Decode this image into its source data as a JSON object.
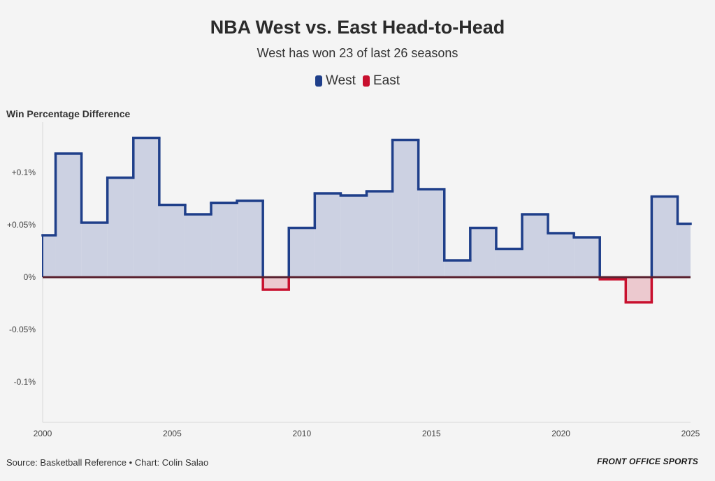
{
  "chart_data": {
    "type": "step-area",
    "title": "NBA West vs. East Head-to-Head",
    "subtitle": "West has won 23 of last 26 seasons",
    "ylabel": "Win Percentage Difference",
    "source": "Source: Basketball Reference • Chart: Colin Salao",
    "brand": "FRONT OFFICE SPORTS",
    "legend": [
      {
        "name": "West",
        "color": "#1f3f8a"
      },
      {
        "name": "East",
        "color": "#c8102e"
      }
    ],
    "colors": {
      "west_line": "#1f3f8a",
      "west_fill": "#ccd1e2",
      "east_line": "#c8102e",
      "east_fill": "#ecc9cf",
      "zero_line": "#5a2230"
    },
    "xlim": [
      2000,
      2025
    ],
    "ylim": [
      -0.14,
      0.14
    ],
    "x_ticks": [
      2000,
      2005,
      2010,
      2015,
      2020,
      2025
    ],
    "y_ticks": [
      {
        "value": 0.1,
        "label": "+0.1%"
      },
      {
        "value": 0.05,
        "label": "+0.05%"
      },
      {
        "value": 0,
        "label": "0%"
      },
      {
        "value": -0.05,
        "label": "-0.05%"
      },
      {
        "value": -0.1,
        "label": "-0.1%"
      }
    ],
    "series": [
      {
        "x": 2000,
        "y": 0.04
      },
      {
        "x": 2001,
        "y": 0.118
      },
      {
        "x": 2002,
        "y": 0.052
      },
      {
        "x": 2003,
        "y": 0.095
      },
      {
        "x": 2004,
        "y": 0.133
      },
      {
        "x": 2005,
        "y": 0.069
      },
      {
        "x": 2006,
        "y": 0.06
      },
      {
        "x": 2007,
        "y": 0.071
      },
      {
        "x": 2008,
        "y": 0.073
      },
      {
        "x": 2009,
        "y": -0.012
      },
      {
        "x": 2010,
        "y": 0.047
      },
      {
        "x": 2011,
        "y": 0.08
      },
      {
        "x": 2012,
        "y": 0.078
      },
      {
        "x": 2013,
        "y": 0.082
      },
      {
        "x": 2014,
        "y": 0.131
      },
      {
        "x": 2015,
        "y": 0.084
      },
      {
        "x": 2016,
        "y": 0.016
      },
      {
        "x": 2017,
        "y": 0.047
      },
      {
        "x": 2018,
        "y": 0.027
      },
      {
        "x": 2019,
        "y": 0.06
      },
      {
        "x": 2020,
        "y": 0.042
      },
      {
        "x": 2021,
        "y": 0.038
      },
      {
        "x": 2022,
        "y": -0.002
      },
      {
        "x": 2023,
        "y": -0.024
      },
      {
        "x": 2024,
        "y": 0.077
      },
      {
        "x": 2025,
        "y": 0.051
      }
    ]
  }
}
